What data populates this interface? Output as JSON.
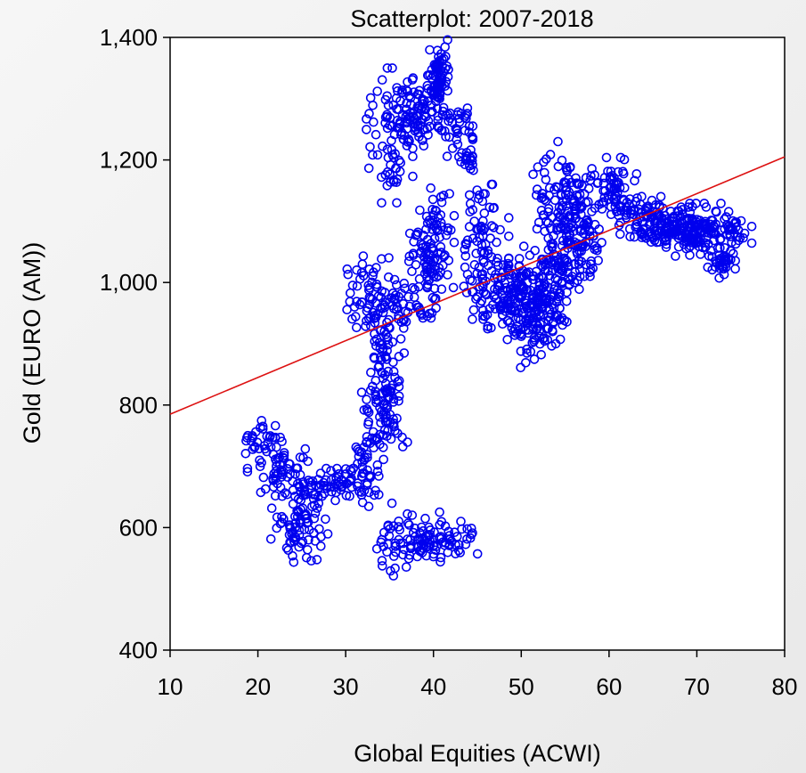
{
  "chart_data": {
    "type": "scatter",
    "title": "Scatterplot: 2007-2018",
    "xlabel": "Global Equities (ACWI)",
    "ylabel": "Gold (EURO (AM))",
    "xlim": [
      10,
      80
    ],
    "ylim": [
      400,
      1400
    ],
    "x_ticks": [
      10,
      20,
      30,
      40,
      50,
      60,
      70,
      80
    ],
    "x_tick_labels": [
      "10",
      "20",
      "30",
      "40",
      "50",
      "60",
      "70",
      "80"
    ],
    "y_ticks": [
      400,
      600,
      800,
      1000,
      1200,
      1400
    ],
    "y_tick_labels": [
      "400",
      "600",
      "800",
      "1,000",
      "1,200",
      "1,400"
    ],
    "grid": false,
    "marker": "open-circle",
    "colors": {
      "points": "#0000ee",
      "fit_line": "#dd1111"
    },
    "fit_line": {
      "x": [
        10,
        80
      ],
      "y": [
        785,
        1205
      ]
    },
    "clusters": [
      {
        "x": 20.5,
        "y": 735,
        "sx": 1.2,
        "sy": 20,
        "n": 40
      },
      {
        "x": 23.5,
        "y": 680,
        "sx": 1.5,
        "sy": 22,
        "n": 60
      },
      {
        "x": 25.0,
        "y": 605,
        "sx": 1.6,
        "sy": 28,
        "n": 70
      },
      {
        "x": 28.5,
        "y": 670,
        "sx": 1.8,
        "sy": 12,
        "n": 55
      },
      {
        "x": 32.5,
        "y": 690,
        "sx": 1.0,
        "sy": 30,
        "n": 40
      },
      {
        "x": 33.8,
        "y": 790,
        "sx": 0.9,
        "sy": 40,
        "n": 70
      },
      {
        "x": 35.5,
        "y": 820,
        "sx": 0.7,
        "sy": 40,
        "n": 30
      },
      {
        "x": 34.5,
        "y": 900,
        "sx": 0.6,
        "sy": 25,
        "n": 30
      },
      {
        "x": 32.5,
        "y": 980,
        "sx": 1.1,
        "sy": 30,
        "n": 60
      },
      {
        "x": 36.5,
        "y": 965,
        "sx": 1.0,
        "sy": 18,
        "n": 35
      },
      {
        "x": 39.5,
        "y": 1030,
        "sx": 1.3,
        "sy": 40,
        "n": 100
      },
      {
        "x": 40.5,
        "y": 1110,
        "sx": 0.6,
        "sy": 20,
        "n": 20
      },
      {
        "x": 35.0,
        "y": 580,
        "sx": 1.2,
        "sy": 30,
        "n": 30
      },
      {
        "x": 38.5,
        "y": 580,
        "sx": 1.0,
        "sy": 22,
        "n": 40
      },
      {
        "x": 41.5,
        "y": 577,
        "sx": 1.6,
        "sy": 15,
        "n": 50
      },
      {
        "x": 35.0,
        "y": 1240,
        "sx": 1.2,
        "sy": 50,
        "n": 70
      },
      {
        "x": 38.0,
        "y": 1280,
        "sx": 1.2,
        "sy": 30,
        "n": 80
      },
      {
        "x": 40.5,
        "y": 1330,
        "sx": 0.8,
        "sy": 30,
        "n": 80
      },
      {
        "x": 42.5,
        "y": 1250,
        "sx": 0.9,
        "sy": 25,
        "n": 40
      },
      {
        "x": 44.0,
        "y": 1205,
        "sx": 0.5,
        "sy": 15,
        "n": 20
      },
      {
        "x": 45.5,
        "y": 1050,
        "sx": 1.4,
        "sy": 50,
        "n": 90
      },
      {
        "x": 48.5,
        "y": 980,
        "sx": 1.3,
        "sy": 30,
        "n": 90
      },
      {
        "x": 51.5,
        "y": 960,
        "sx": 1.4,
        "sy": 45,
        "n": 150
      },
      {
        "x": 54.0,
        "y": 1000,
        "sx": 1.1,
        "sy": 50,
        "n": 100
      },
      {
        "x": 52.5,
        "y": 1140,
        "sx": 1.0,
        "sy": 35,
        "n": 30
      },
      {
        "x": 55.5,
        "y": 1120,
        "sx": 1.3,
        "sy": 50,
        "n": 100
      },
      {
        "x": 57.5,
        "y": 1070,
        "sx": 1.0,
        "sy": 40,
        "n": 50
      },
      {
        "x": 60.5,
        "y": 1160,
        "sx": 1.2,
        "sy": 25,
        "n": 55
      },
      {
        "x": 63.5,
        "y": 1110,
        "sx": 1.5,
        "sy": 20,
        "n": 70
      },
      {
        "x": 67.0,
        "y": 1090,
        "sx": 1.8,
        "sy": 15,
        "n": 90
      },
      {
        "x": 70.5,
        "y": 1085,
        "sx": 1.8,
        "sy": 20,
        "n": 110
      },
      {
        "x": 73.0,
        "y": 1040,
        "sx": 0.8,
        "sy": 15,
        "n": 35
      },
      {
        "x": 74.5,
        "y": 1085,
        "sx": 0.8,
        "sy": 10,
        "n": 25
      }
    ]
  }
}
